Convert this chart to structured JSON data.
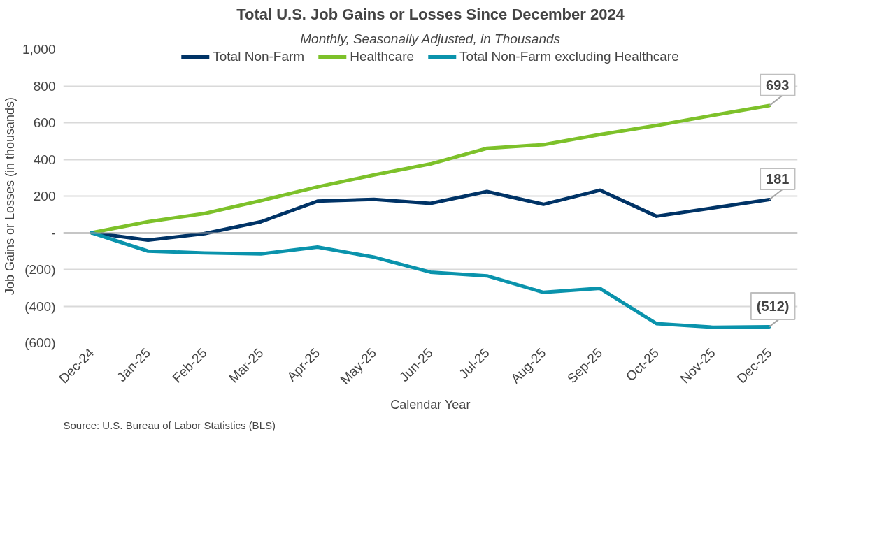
{
  "chart_data": {
    "type": "line",
    "title": "Total U.S. Job Gains or Losses Since December 2024",
    "subtitle": "Monthly, Seasonally Adjusted, in Thousands",
    "xlabel": "Calendar Year",
    "ylabel": "Job Gains or Losses (in thousands)",
    "categories": [
      "Dec-24",
      "Jan-25",
      "Feb-25",
      "Mar-25",
      "Apr-25",
      "May-25",
      "Jun-25",
      "Jul-25",
      "Aug-25",
      "Sep-25",
      "Oct-25",
      "Nov-25",
      "Dec-25"
    ],
    "series": [
      {
        "name": "Total Non-Farm",
        "color": "#003366",
        "values": [
          0,
          -40,
          -5,
          60,
          172,
          182,
          160,
          225,
          155,
          232,
          90,
          135,
          181
        ],
        "value_labels": [
          null,
          null,
          null,
          null,
          null,
          null,
          null,
          null,
          null,
          null,
          null,
          null,
          "181"
        ]
      },
      {
        "name": "Healthcare",
        "color": "#7dc12a",
        "values": [
          0,
          60,
          105,
          175,
          250,
          315,
          375,
          460,
          480,
          535,
          585,
          640,
          693
        ],
        "value_labels": [
          null,
          null,
          null,
          null,
          null,
          null,
          null,
          null,
          null,
          null,
          null,
          null,
          "693"
        ]
      },
      {
        "name": "Total Non-Farm excluding Healthcare",
        "color": "#0a93ac",
        "values": [
          0,
          -100,
          -110,
          -115,
          -78,
          -133,
          -215,
          -235,
          -325,
          -303,
          -495,
          -515,
          -512
        ],
        "value_labels": [
          null,
          null,
          null,
          null,
          null,
          null,
          null,
          null,
          null,
          null,
          null,
          null,
          "(512)"
        ]
      }
    ],
    "ylim": [
      -600,
      1000
    ],
    "yticks": [
      {
        "value": -600,
        "label": "(600)"
      },
      {
        "value": -400,
        "label": "(400)"
      },
      {
        "value": -200,
        "label": "(200)"
      },
      {
        "value": 0,
        "label": "-"
      },
      {
        "value": 200,
        "label": "200"
      },
      {
        "value": 400,
        "label": "400"
      },
      {
        "value": 600,
        "label": "600"
      },
      {
        "value": 800,
        "label": "800"
      },
      {
        "value": 1000,
        "label": "1,000"
      }
    ],
    "grid": "y",
    "legend": "top",
    "marker": "none",
    "line_style": "solid",
    "annotations": [
      "Source: U.S. Bureau of Labor Statistics (BLS)"
    ]
  }
}
